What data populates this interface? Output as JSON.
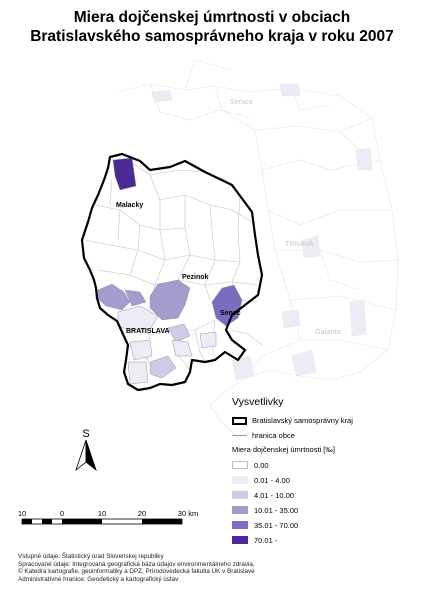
{
  "title": {
    "line1": "Miera dojčenskej úmrtnosti v obciach",
    "line2": "Bratislavského samosprávneho kraja v roku 2007"
  },
  "map_labels": {
    "towns": [
      "Malacky",
      "Pezinok",
      "Senec",
      "BRATISLAVA"
    ],
    "neighbors": [
      "Senica",
      "TRNAVA",
      "Galanta"
    ]
  },
  "legend": {
    "heading": "Vysvetlivky",
    "border_label": "Bratislavský samosprávny kraj",
    "boundary_label": "hranica obce",
    "classes_title": "Miera dojčenskej úmrtnosti [‰]",
    "classes": [
      {
        "label": "0.00",
        "color": "#ffffff"
      },
      {
        "label": "0.01 - 4.00",
        "color": "#ecebf6"
      },
      {
        "label": "4.01 - 10.00",
        "color": "#cfcbe7"
      },
      {
        "label": "10.01 - 35.00",
        "color": "#a39ccf"
      },
      {
        "label": "35.01 - 70.00",
        "color": "#7b6cbf"
      },
      {
        "label": "70.01 -",
        "color": "#4a2a94"
      }
    ]
  },
  "north_arrow": {
    "label": "S"
  },
  "scale_bar": {
    "ticks": [
      "10",
      "0",
      "10",
      "20",
      "30 km"
    ]
  },
  "credits": [
    "Vstupné údaje: Štatistický úrad Slovenskej republiky",
    "Spracované údaje: Integrovaná geografická báza údajov environmentálneho zdravia,",
    "© Katedra kartografie, geoinformatiky a DPZ, Prírodovedecká fakulta UK v Bratislave",
    "Administratívne hranice: Geodetický a kartografický ústav"
  ]
}
